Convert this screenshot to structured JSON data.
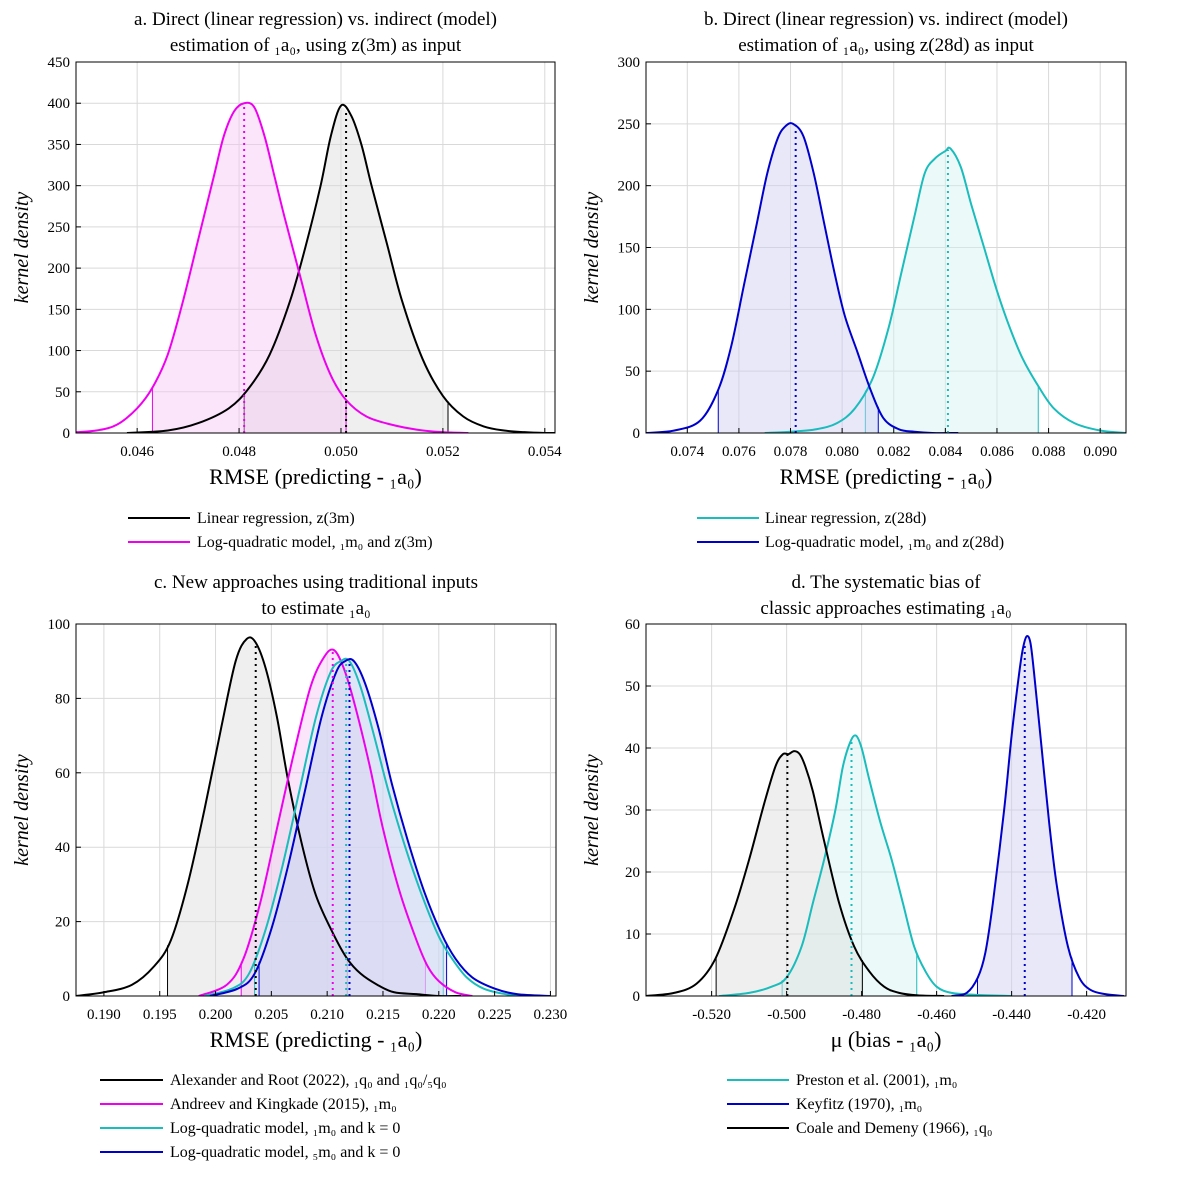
{
  "chart_data": [
    {
      "id": "a",
      "type": "line",
      "title_lines": [
        "a. Direct (linear regression) vs. indirect (model)",
        "estimation of ₁a₀, using z(3m) as input"
      ],
      "xlabel": "RMSE (predicting - ₁a₀)",
      "ylabel": "kernel density",
      "xlim": [
        0.0448,
        0.0542
      ],
      "ylim": [
        0,
        450
      ],
      "xticks": [
        0.046,
        0.048,
        0.05,
        0.052,
        0.054
      ],
      "xtick_labels": [
        "0.046",
        "0.048",
        "0.050",
        "0.052",
        "0.054"
      ],
      "yticks": [
        0,
        50,
        100,
        150,
        200,
        250,
        300,
        350,
        400,
        450
      ],
      "ytick_labels": [
        "0",
        "50",
        "100",
        "150",
        "200",
        "250",
        "300",
        "350",
        "400",
        "450"
      ],
      "series": [
        {
          "name": "Linear regression, z(3m)",
          "color": "#000000",
          "fill": "#dcdcdc",
          "x": [
            0.0458,
            0.0466,
            0.0472,
            0.0478,
            0.0482,
            0.0486,
            0.049,
            0.0493,
            0.0496,
            0.0498,
            0.05,
            0.0502,
            0.0504,
            0.0506,
            0.0509,
            0.0512,
            0.0516,
            0.052,
            0.0524,
            0.0528,
            0.0532,
            0.0536,
            0.054,
            0.0542
          ],
          "y": [
            0,
            3,
            12,
            30,
            55,
            95,
            160,
            225,
            300,
            360,
            397,
            385,
            350,
            300,
            230,
            160,
            90,
            45,
            20,
            8,
            3,
            1,
            0,
            0
          ],
          "median": 0.0501,
          "ci": [
            0.0481,
            0.0521
          ]
        },
        {
          "name": "Log-quadratic model, ₁m₀ and z(3m)",
          "color": "#ee00ee",
          "fill": "#f6c6f6",
          "x": [
            0.0448,
            0.0452,
            0.0456,
            0.046,
            0.0463,
            0.0466,
            0.0469,
            0.0472,
            0.0475,
            0.0477,
            0.0479,
            0.0481,
            0.0483,
            0.0485,
            0.0487,
            0.0489,
            0.0492,
            0.0495,
            0.0498,
            0.0501,
            0.0505,
            0.051,
            0.0515,
            0.052,
            0.0525
          ],
          "y": [
            1,
            3,
            10,
            30,
            55,
            95,
            160,
            235,
            310,
            360,
            390,
            400,
            395,
            360,
            310,
            260,
            190,
            120,
            70,
            40,
            20,
            10,
            4,
            1,
            0
          ],
          "median": 0.0481,
          "ci": [
            0.0463,
            0.0501
          ]
        }
      ]
    },
    {
      "id": "b",
      "type": "line",
      "title_lines": [
        "b. Direct (linear regression) vs. indirect (model)",
        "estimation of ₁a₀, using z(28d) as input"
      ],
      "xlabel": "RMSE (predicting - ₁a₀)",
      "ylabel": "kernel density",
      "xlim": [
        0.0724,
        0.091
      ],
      "ylim": [
        0,
        300
      ],
      "xticks": [
        0.074,
        0.076,
        0.078,
        0.08,
        0.082,
        0.084,
        0.086,
        0.088,
        0.09
      ],
      "xtick_labels": [
        "0.074",
        "0.076",
        "0.078",
        "0.080",
        "0.082",
        "0.084",
        "0.086",
        "0.088",
        "0.090"
      ],
      "yticks": [
        0,
        50,
        100,
        150,
        200,
        250,
        300
      ],
      "ytick_labels": [
        "0",
        "50",
        "100",
        "150",
        "200",
        "250",
        "300"
      ],
      "series": [
        {
          "name": "Linear regression, z(28d)",
          "color": "#1abcbc",
          "fill": "#d2f2f2",
          "x": [
            0.077,
            0.078,
            0.079,
            0.0798,
            0.0805,
            0.0812,
            0.0818,
            0.0823,
            0.0828,
            0.0832,
            0.0836,
            0.084,
            0.0842,
            0.0846,
            0.085,
            0.0855,
            0.086,
            0.0865,
            0.087,
            0.0876,
            0.0882,
            0.089,
            0.09,
            0.091
          ],
          "y": [
            0,
            1,
            3,
            8,
            20,
            45,
            85,
            130,
            175,
            210,
            222,
            228,
            230,
            215,
            185,
            150,
            115,
            85,
            60,
            38,
            20,
            8,
            2,
            0
          ],
          "median": 0.0841,
          "ci": [
            0.0809,
            0.0876
          ]
        },
        {
          "name": "Log-quadratic model, ₁m₀ and z(28d)",
          "color": "#0000cc",
          "fill": "#cdcdf2",
          "x": [
            0.0724,
            0.0735,
            0.0745,
            0.0752,
            0.0757,
            0.0762,
            0.0767,
            0.0771,
            0.0775,
            0.0778,
            0.0781,
            0.0785,
            0.0789,
            0.0793,
            0.0797,
            0.0801,
            0.0806,
            0.0811,
            0.0816,
            0.0822,
            0.0828,
            0.0835,
            0.0845
          ],
          "y": [
            0,
            2,
            10,
            35,
            70,
            120,
            170,
            210,
            238,
            248,
            250,
            240,
            210,
            170,
            130,
            95,
            65,
            35,
            12,
            3,
            1,
            0,
            0
          ],
          "median": 0.0782,
          "ci": [
            0.0752,
            0.0814
          ]
        }
      ]
    },
    {
      "id": "c",
      "type": "line",
      "title_lines": [
        "c. New approaches using traditional inputs",
        "to estimate ₁a₀"
      ],
      "xlabel": "RMSE (predicting - ₁a₀)",
      "ylabel": "kernel density",
      "xlim": [
        0.1875,
        0.2305
      ],
      "ylim": [
        0,
        100
      ],
      "xticks": [
        0.19,
        0.195,
        0.2,
        0.205,
        0.21,
        0.215,
        0.22,
        0.225,
        0.23
      ],
      "xtick_labels": [
        "0.190",
        "0.195",
        "0.200",
        "0.205",
        "0.210",
        "0.215",
        "0.220",
        "0.225",
        "0.230"
      ],
      "yticks": [
        0,
        20,
        40,
        60,
        80,
        100
      ],
      "ytick_labels": [
        "0",
        "20",
        "40",
        "60",
        "80",
        "100"
      ],
      "series": [
        {
          "name": "Alexander and Root (2022), ₁q₀ and ₁q₀/₅q₀",
          "color": "#000000",
          "fill": "#dcdcdc",
          "x": [
            0.1875,
            0.19,
            0.1925,
            0.1945,
            0.196,
            0.1975,
            0.199,
            0.2005,
            0.2018,
            0.2028,
            0.2036,
            0.2045,
            0.2055,
            0.2065,
            0.2078,
            0.209,
            0.2105,
            0.2118,
            0.213,
            0.2145,
            0.216,
            0.218,
            0.22,
            0.222
          ],
          "y": [
            0,
            1,
            3,
            8,
            15,
            30,
            50,
            72,
            90,
            96,
            95,
            88,
            75,
            58,
            40,
            27,
            17,
            10,
            6,
            3,
            1,
            0.5,
            0,
            0
          ],
          "median": 0.2036,
          "ci": [
            0.1957,
            0.2118
          ]
        },
        {
          "name": "Andreev and Kingkade (2015), ₁m₀",
          "color": "#ee00ee",
          "fill": "#f6c6f6",
          "x": [
            0.1985,
            0.201,
            0.2025,
            0.204,
            0.2055,
            0.207,
            0.2085,
            0.2097,
            0.2106,
            0.2115,
            0.2125,
            0.2138,
            0.215,
            0.2165,
            0.218,
            0.219,
            0.22,
            0.2215,
            0.223
          ],
          "y": [
            0,
            3,
            10,
            25,
            45,
            65,
            83,
            91,
            93,
            88,
            78,
            62,
            45,
            28,
            15,
            8,
            4,
            1,
            0
          ],
          "median": 0.2105,
          "ci": [
            0.2023,
            0.2188
          ]
        },
        {
          "name": "Log-quadratic model, ₁m₀ and k = 0",
          "color": "#1abcbc",
          "fill": "#d2f2f2",
          "x": [
            0.199,
            0.2015,
            0.203,
            0.2045,
            0.206,
            0.2075,
            0.209,
            0.2103,
            0.2112,
            0.212,
            0.213,
            0.2142,
            0.2155,
            0.217,
            0.2185,
            0.22,
            0.2212,
            0.2225,
            0.224,
            0.226,
            0.228
          ],
          "y": [
            0,
            2,
            6,
            18,
            35,
            55,
            75,
            87,
            90,
            90,
            83,
            70,
            55,
            40,
            27,
            16,
            10,
            5,
            2,
            0.5,
            0
          ],
          "median": 0.2117,
          "ci": [
            0.2035,
            0.2204
          ]
        },
        {
          "name": "Log-quadratic model, ₅m₀ and k = 0",
          "color": "#0000cc",
          "fill": "#cdcdf2",
          "x": [
            0.1995,
            0.202,
            0.2035,
            0.205,
            0.2065,
            0.208,
            0.2095,
            0.2108,
            0.2116,
            0.2124,
            0.2134,
            0.2146,
            0.2158,
            0.2172,
            0.2187,
            0.2202,
            0.2215,
            0.223,
            0.225,
            0.227,
            0.23
          ],
          "y": [
            0,
            2,
            6,
            18,
            35,
            55,
            75,
            87,
            90,
            90,
            84,
            72,
            57,
            42,
            28,
            17,
            10,
            5,
            2,
            0.5,
            0
          ],
          "median": 0.212,
          "ci": [
            0.2039,
            0.2207
          ]
        }
      ]
    },
    {
      "id": "d",
      "type": "line",
      "title_lines": [
        "d. The systematic bias of",
        "classic approaches estimating ₁a₀"
      ],
      "xlabel": "μ (bias - ₁a₀)",
      "ylabel": "kernel density",
      "xlim": [
        -0.5375,
        -0.4095
      ],
      "ylim": [
        0,
        60
      ],
      "xticks": [
        -0.52,
        -0.5,
        -0.48,
        -0.46,
        -0.44,
        -0.42
      ],
      "xtick_labels": [
        "-0.520",
        "-0.500",
        "-0.480",
        "-0.460",
        "-0.440",
        "-0.420"
      ],
      "yticks": [
        0,
        10,
        20,
        30,
        40,
        50,
        60
      ],
      "ytick_labels": [
        "0",
        "10",
        "20",
        "30",
        "40",
        "50",
        "60"
      ],
      "series": [
        {
          "name": "Preston et al. (2001), ₁m₀",
          "color": "#1abcbc",
          "fill": "#d2f2f2",
          "x": [
            -0.518,
            -0.51,
            -0.504,
            -0.5,
            -0.496,
            -0.493,
            -0.49,
            -0.487,
            -0.485,
            -0.483,
            -0.4815,
            -0.48,
            -0.478,
            -0.475,
            -0.472,
            -0.469,
            -0.466,
            -0.463,
            -0.46,
            -0.456,
            -0.45,
            -0.44
          ],
          "y": [
            0,
            0.5,
            1.5,
            3,
            8,
            15,
            22,
            30,
            37,
            41,
            42,
            40,
            35,
            28,
            22,
            15,
            8,
            4,
            1.5,
            0.5,
            0.2,
            0
          ],
          "median": -0.4827,
          "ci": [
            -0.5012,
            -0.4653
          ]
        },
        {
          "name": "Keyfitz (1970), ₁m₀",
          "color": "#0000cc",
          "fill": "#cdcdf2",
          "x": [
            -0.456,
            -0.452,
            -0.449,
            -0.447,
            -0.445,
            -0.442,
            -0.44,
            -0.438,
            -0.437,
            -0.436,
            -0.435,
            -0.434,
            -0.432,
            -0.43,
            -0.428,
            -0.425,
            -0.422,
            -0.419,
            -0.415,
            -0.41
          ],
          "y": [
            0,
            0.5,
            3,
            7,
            15,
            30,
            42,
            52,
            56,
            58,
            57,
            52,
            40,
            28,
            18,
            8,
            3,
            1,
            0.3,
            0
          ],
          "median": -0.4365,
          "ci": [
            -0.4491,
            -0.4239
          ]
        },
        {
          "name": "Coale and Demeny (1966), ₁q₀",
          "color": "#000000",
          "fill": "#dcdcdc",
          "x": [
            -0.5375,
            -0.53,
            -0.524,
            -0.519,
            -0.514,
            -0.51,
            -0.506,
            -0.503,
            -0.501,
            -0.4995,
            -0.498,
            -0.4965,
            -0.495,
            -0.493,
            -0.49,
            -0.486,
            -0.482,
            -0.478,
            -0.474,
            -0.47,
            -0.465,
            -0.458
          ],
          "y": [
            0,
            0.5,
            2,
            6,
            14,
            22,
            31,
            37,
            39,
            39,
            39.5,
            39,
            37,
            33,
            25,
            15,
            8,
            4,
            1.5,
            0.5,
            0.1,
            0
          ],
          "median": -0.4998,
          "ci": [
            -0.5188,
            -0.4798
          ]
        }
      ]
    }
  ]
}
